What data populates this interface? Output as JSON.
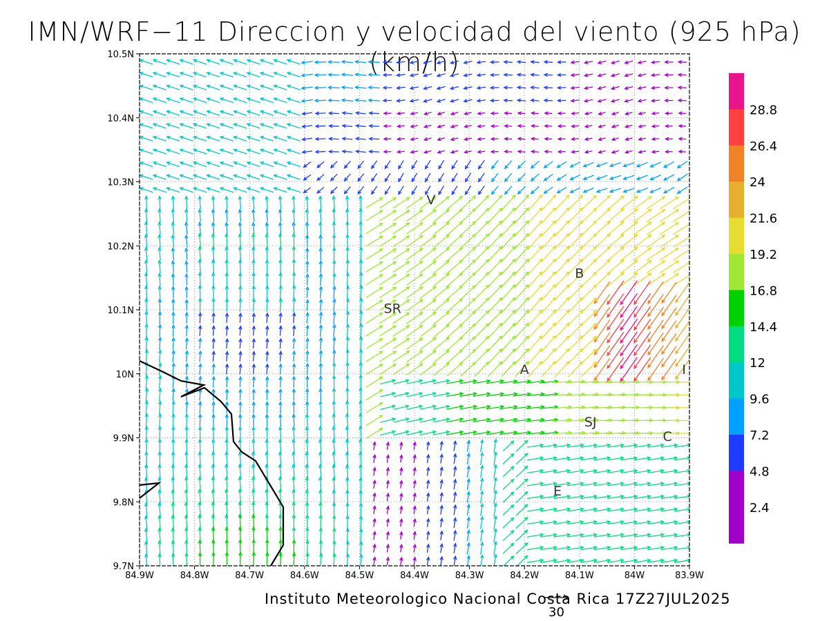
{
  "title": "IMN/WRF−11 Direccion y velocidad del viento (925 hPa)(km/h)",
  "credit": "Instituto Meteorologico Nacional Costa Rica 17Z27JUL2025",
  "reference_vector_label": "30",
  "map": {
    "lon_range": [
      -84.9,
      -83.9
    ],
    "lat_range": [
      9.7,
      10.5
    ],
    "grid": true,
    "x_tick_labels": [
      "84.9W",
      "84.8W",
      "84.7W",
      "84.6W",
      "84.5W",
      "84.4W",
      "84.3W",
      "84.2W",
      "84.1W",
      "84W",
      "83.9W"
    ],
    "y_tick_labels": [
      "9.7N",
      "9.8N",
      "9.9N",
      "10N",
      "10.1N",
      "10.2N",
      "10.3N",
      "10.4N",
      "10.5N"
    ],
    "places": [
      {
        "label": "V",
        "lon": -84.37,
        "lat": 10.265
      },
      {
        "label": "B",
        "lon": -84.1,
        "lat": 10.15
      },
      {
        "label": "SR",
        "lon": -84.44,
        "lat": 10.095
      },
      {
        "label": "A",
        "lon": -84.2,
        "lat": 10.0
      },
      {
        "label": "I",
        "lon": -83.91,
        "lat": 10.0
      },
      {
        "label": "SJ",
        "lon": -84.08,
        "lat": 9.918
      },
      {
        "label": "C",
        "lon": -83.94,
        "lat": 9.895
      },
      {
        "label": "E",
        "lon": -84.14,
        "lat": 9.81
      }
    ]
  },
  "colorbar": {
    "labels": [
      "28.8",
      "26.4",
      "24",
      "21.6",
      "19.2",
      "16.8",
      "14.4",
      "12",
      "9.6",
      "7.2",
      "4.8",
      "2.4"
    ],
    "colors": [
      "#e8148c",
      "#ff4040",
      "#f08228",
      "#e6af2d",
      "#e6dc32",
      "#a0e632",
      "#00d200",
      "#00dc82",
      "#00c8c8",
      "#00a0ff",
      "#1e3cff",
      "#a000c8",
      "#a000c8"
    ]
  }
}
